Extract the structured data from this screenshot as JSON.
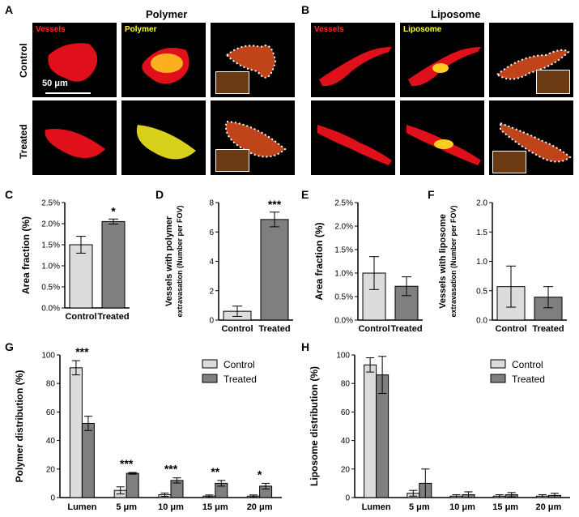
{
  "figure": {
    "panel_letters": [
      "A",
      "B",
      "C",
      "D",
      "E",
      "F",
      "G",
      "H"
    ],
    "col_titles": {
      "polymer": "Polymer",
      "liposome": "Liposome"
    },
    "row_titles": {
      "control": "Control",
      "treated": "Treated"
    },
    "tile_labels": {
      "vessels": "Vessels",
      "polymer": "Polymer",
      "liposome": "Liposome"
    },
    "tile_label_colors": {
      "vessels": "#ff2a2a",
      "polymer": "#ffff33",
      "liposome": "#ffff33"
    },
    "scale_bar_label": "50 μm"
  },
  "chart_data": [
    {
      "id": "C",
      "type": "bar",
      "categories": [
        "Control",
        "Treated"
      ],
      "values": [
        1.5,
        2.05
      ],
      "errors": [
        0.2,
        0.06
      ],
      "ylabel": "Area fraction (%)",
      "ylim": [
        0,
        2.5
      ],
      "ticks": [
        "0.0%",
        "0.5%",
        "1.0%",
        "1.5%",
        "2.0%",
        "2.5%"
      ],
      "significance": [
        "",
        "*"
      ],
      "colors": [
        "#dcdcdc",
        "#7f7f7f"
      ]
    },
    {
      "id": "D",
      "type": "bar",
      "categories": [
        "Control",
        "Treated"
      ],
      "values": [
        0.6,
        6.85
      ],
      "errors": [
        0.35,
        0.5
      ],
      "ylabel": "Vessels with polymer",
      "ylabel2": "extravasation (Number per FOV)",
      "ylim": [
        0,
        8
      ],
      "ticks": [
        "0",
        "2",
        "4",
        "6",
        "8"
      ],
      "significance": [
        "",
        "***"
      ],
      "colors": [
        "#dcdcdc",
        "#7f7f7f"
      ]
    },
    {
      "id": "E",
      "type": "bar",
      "categories": [
        "Control",
        "Treated"
      ],
      "values": [
        1.0,
        0.72
      ],
      "errors": [
        0.35,
        0.2
      ],
      "ylabel": "Area fraction (%)",
      "ylim": [
        0,
        2.5
      ],
      "ticks": [
        "0.0%",
        "0.5%",
        "1.0%",
        "1.5%",
        "2.0%",
        "2.5%"
      ],
      "significance": [
        "",
        ""
      ],
      "colors": [
        "#dcdcdc",
        "#7f7f7f"
      ]
    },
    {
      "id": "F",
      "type": "bar",
      "categories": [
        "Control",
        "Treated"
      ],
      "values": [
        0.57,
        0.39
      ],
      "errors": [
        0.35,
        0.18
      ],
      "ylabel": "Vessels with liposome",
      "ylabel2": "extravasation (Number per FOV)",
      "ylim": [
        0,
        2.0
      ],
      "ticks": [
        "0.0",
        "0.5",
        "1.0",
        "1.5",
        "2.0"
      ],
      "significance": [
        "",
        ""
      ],
      "colors": [
        "#dcdcdc",
        "#7f7f7f"
      ]
    },
    {
      "id": "G",
      "type": "bar",
      "categories": [
        "Lumen",
        "5 μm",
        "10 μm",
        "15 μm",
        "20 μm"
      ],
      "series": [
        {
          "name": "Control",
          "values": [
            91,
            5,
            2,
            1,
            1
          ],
          "errors": [
            5,
            2.5,
            1.2,
            0.8,
            0.8
          ],
          "color": "#dcdcdc"
        },
        {
          "name": "Treated",
          "values": [
            52,
            17,
            12,
            10,
            8
          ],
          "errors": [
            5,
            0.6,
            1.8,
            2,
            2
          ],
          "color": "#7f7f7f"
        }
      ],
      "ylabel": "Polymer distribution (%)",
      "ylim": [
        0,
        100
      ],
      "ticks": [
        "0",
        "20",
        "40",
        "60",
        "80",
        "100"
      ],
      "significance": [
        "***",
        "***",
        "***",
        "**",
        "*"
      ],
      "legend": "top-right"
    },
    {
      "id": "H",
      "type": "bar",
      "categories": [
        "Lumen",
        "5 μm",
        "10 μm",
        "15 μm",
        "20 μm"
      ],
      "series": [
        {
          "name": "Control",
          "values": [
            93,
            3,
            1,
            1,
            1
          ],
          "errors": [
            5,
            2,
            1,
            1,
            1
          ],
          "color": "#dcdcdc"
        },
        {
          "name": "Treated",
          "values": [
            86,
            10,
            2,
            2,
            1.5
          ],
          "errors": [
            13,
            10,
            2,
            1.5,
            1.5
          ],
          "color": "#7f7f7f"
        }
      ],
      "ylabel": "Liposome distribution (%)",
      "ylim": [
        0,
        100
      ],
      "ticks": [
        "0",
        "20",
        "40",
        "60",
        "80",
        "100"
      ],
      "significance": [
        "",
        "",
        "",
        "",
        ""
      ],
      "legend": "top-right"
    }
  ]
}
